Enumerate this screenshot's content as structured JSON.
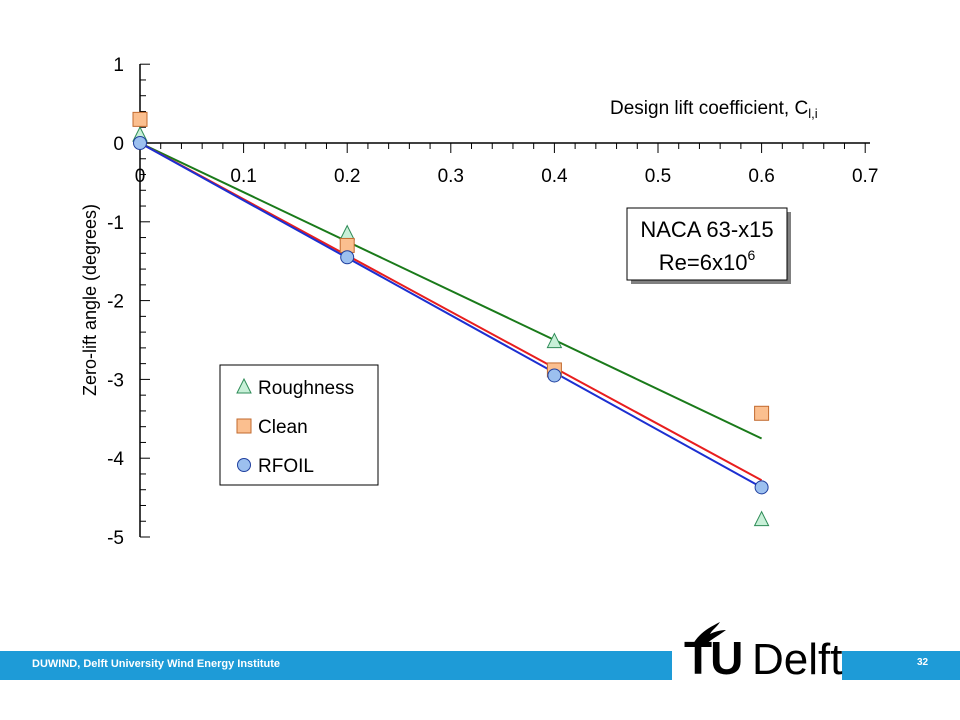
{
  "chart_data": {
    "type": "scatter",
    "title_box": {
      "line1": "NACA 63-x15",
      "line2_base": "Re=6x10",
      "line2_sup": "6"
    },
    "xlabel": "Design lift coefficient, C",
    "xlabel_sub": "l,i",
    "ylabel": "Zero-lift angle (degrees)",
    "xlim": [
      0,
      0.7
    ],
    "ylim": [
      -5,
      1
    ],
    "x_ticks": [
      "0",
      "0.1",
      "0.2",
      "0.3",
      "0.4",
      "0.5",
      "0.6",
      "0.7"
    ],
    "y_ticks": [
      "1",
      "0",
      "-1",
      "-2",
      "-3",
      "-4",
      "-5"
    ],
    "legend_position": "lower-left",
    "series": [
      {
        "name": "Roughness",
        "marker": "triangle",
        "fill": "#c8f0d8",
        "stroke": "#2e8b57",
        "line_color": "#1a7a1a",
        "points": [
          [
            0,
            0.1
          ],
          [
            0.2,
            -1.15
          ],
          [
            0.4,
            -2.52
          ],
          [
            0.6,
            -4.78
          ]
        ],
        "fit": [
          [
            0,
            0
          ],
          [
            0.6,
            -3.75
          ]
        ]
      },
      {
        "name": "Clean",
        "marker": "square",
        "fill": "#fbbf8f",
        "stroke": "#c26a2e",
        "line_color": "#e81e1e",
        "points": [
          [
            0,
            0.3
          ],
          [
            0.2,
            -1.3
          ],
          [
            0.4,
            -2.88
          ],
          [
            0.6,
            -3.43
          ]
        ],
        "fit": [
          [
            0,
            0
          ],
          [
            0.6,
            -4.28
          ]
        ]
      },
      {
        "name": "RFOIL",
        "marker": "circle",
        "fill": "#9cc0ef",
        "stroke": "#1f3f9f",
        "line_color": "#1c2fd1",
        "points": [
          [
            0,
            0.0
          ],
          [
            0.2,
            -1.45
          ],
          [
            0.4,
            -2.95
          ],
          [
            0.6,
            -4.37
          ]
        ],
        "fit": [
          [
            0,
            0
          ],
          [
            0.6,
            -4.37
          ]
        ]
      }
    ]
  },
  "footer": {
    "institute": "DUWIND, Delft University Wind Energy Institute",
    "page": "32"
  },
  "logo": {
    "tu": "TU",
    "delft": "Delft"
  }
}
